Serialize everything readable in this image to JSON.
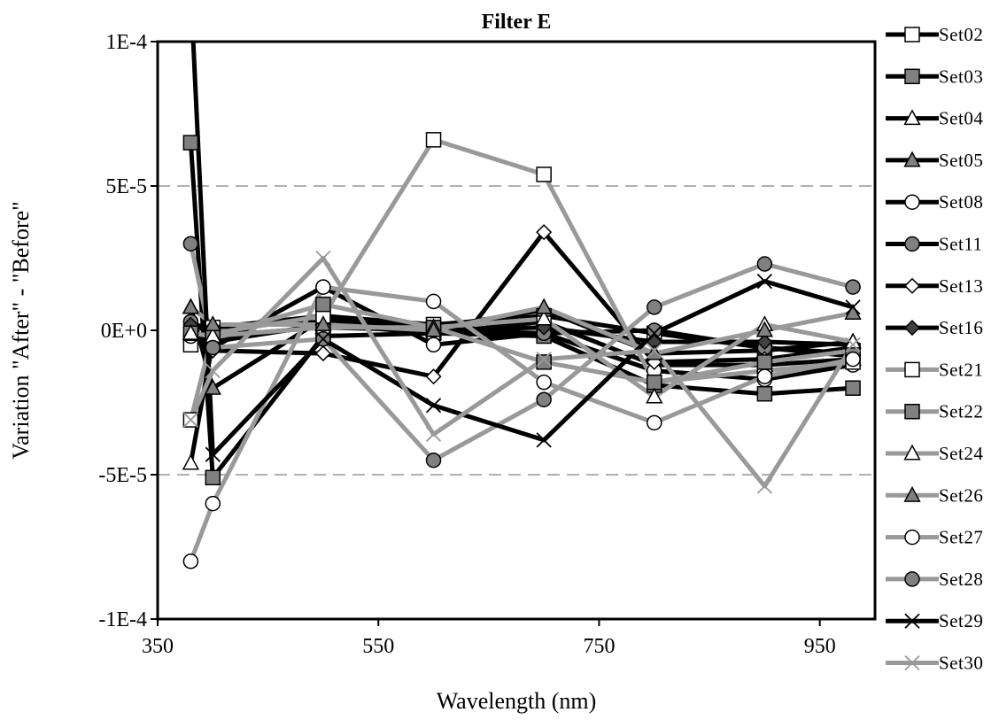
{
  "chart_data": {
    "type": "line",
    "title": "Filter E",
    "xlabel": "Wavelength (nm)",
    "ylabel": "Variation \"After\" -  \"Before\"",
    "xlim": [
      350,
      1000
    ],
    "ylim": [
      -0.0001,
      0.0001
    ],
    "x_ticks": [
      350,
      550,
      750,
      950
    ],
    "x_tick_labels": [
      "350",
      "550",
      "750",
      "950"
    ],
    "y_ticks": [
      0.0001,
      5e-05,
      0,
      -5e-05,
      -0.0001
    ],
    "y_tick_labels": [
      "1E-4",
      "5E-5",
      "0E+0",
      "-5E-5",
      "-1E-4"
    ],
    "gridlines": "horizontal dashed at 5E-5 and -5E-5",
    "legend_position": "right",
    "x": [
      380,
      400,
      500,
      600,
      700,
      800,
      900,
      980
    ],
    "series": [
      {
        "name": "Set02",
        "color": "#000000",
        "marker": "square-open",
        "values": [
          -5e-06,
          1e-06,
          5e-06,
          2e-06,
          5e-06,
          -1e-06,
          -6e-06,
          -8e-06
        ]
      },
      {
        "name": "Set03",
        "color": "#000000",
        "marker": "square-filled",
        "values": [
          6.5e-05,
          -5.1e-05,
          -2e-06,
          -1e-06,
          -2e-06,
          -1.9e-05,
          -2.2e-05,
          -2e-05
        ]
      },
      {
        "name": "Set04",
        "color": "#000000",
        "marker": "triangle-open",
        "values": [
          -4.6e-05,
          -4e-06,
          2e-06,
          -1e-06,
          3e-06,
          -1.2e-05,
          -1.2e-05,
          -1e-05
        ]
      },
      {
        "name": "Set05",
        "color": "#000000",
        "marker": "triangle-filled",
        "values": [
          8e-06,
          -2e-05,
          4e-06,
          1e-06,
          7e-06,
          -8e-06,
          -7e-06,
          -4e-06
        ]
      },
      {
        "name": "Set08",
        "color": "#000000",
        "marker": "circle-open",
        "values": [
          -2e-06,
          -6e-06,
          1.5e-05,
          -5e-06,
          -1e-06,
          -1.4e-05,
          -1.7e-05,
          -1.2e-05
        ]
      },
      {
        "name": "Set11",
        "color": "#000000",
        "marker": "circle-filled",
        "values": [
          3e-06,
          -2e-06,
          1e-06,
          0.0,
          -1e-06,
          0.0,
          -6e-06,
          -9e-06
        ]
      },
      {
        "name": "Set13",
        "color": "#000000",
        "marker": "diamond-open",
        "values": [
          1e-06,
          -7e-06,
          -8e-06,
          -1.6e-05,
          3.4e-05,
          -1.1e-05,
          -1e-05,
          -6e-06
        ]
      },
      {
        "name": "Set16",
        "color": "#000000",
        "marker": "diamond-filled",
        "values": [
          2e-06,
          1e-06,
          3e-06,
          0.0,
          1e-06,
          -4e-06,
          -4e-06,
          -5e-06
        ]
      },
      {
        "name": "Set21",
        "color": "#999999",
        "marker": "square-open",
        "values": [
          -3.1e-05,
          -1e-06,
          5e-06,
          6.6e-05,
          5.4e-05,
          -1.8e-05,
          -1.4e-05,
          -1.1e-05
        ]
      },
      {
        "name": "Set22",
        "color": "#999999",
        "marker": "square-filled",
        "values": [
          -1e-06,
          -2e-06,
          9e-06,
          1e-06,
          -1.1e-05,
          -1.8e-05,
          -1.1e-05,
          -7e-06
        ]
      },
      {
        "name": "Set24",
        "color": "#999999",
        "marker": "triangle-open",
        "values": [
          -1e-06,
          -2e-06,
          1e-06,
          1e-06,
          4e-06,
          -2.3e-05,
          2e-06,
          -4e-06
        ]
      },
      {
        "name": "Set26",
        "color": "#999999",
        "marker": "triangle-filled",
        "values": [
          8e-06,
          2e-06,
          2e-06,
          0.0,
          8e-06,
          -8e-06,
          0.0,
          6e-06
        ]
      },
      {
        "name": "Set27",
        "color": "#999999",
        "marker": "circle-open",
        "values": [
          -8e-05,
          -6e-05,
          1.5e-05,
          1e-05,
          -1.8e-05,
          -3.2e-05,
          -1.6e-05,
          -1e-05
        ]
      },
      {
        "name": "Set28",
        "color": "#999999",
        "marker": "circle-filled",
        "values": [
          3e-05,
          -6e-06,
          -3e-06,
          -4.5e-05,
          -2.4e-05,
          8e-06,
          2.3e-05,
          1.5e-05
        ]
      },
      {
        "name": "Set29",
        "color": "#000000",
        "marker": "x",
        "values": [
          0.000118,
          -4.3e-05,
          -3e-06,
          -2.6e-05,
          -3.8e-05,
          -1e-06,
          1.7e-05,
          8e-06
        ]
      },
      {
        "name": "Set30",
        "color": "#999999",
        "marker": "x",
        "values": [
          -3.1e-05,
          -1.4e-05,
          2.5e-05,
          -3.6e-05,
          -1e-05,
          -7e-06,
          -5.4e-05,
          -5e-06
        ]
      }
    ]
  }
}
